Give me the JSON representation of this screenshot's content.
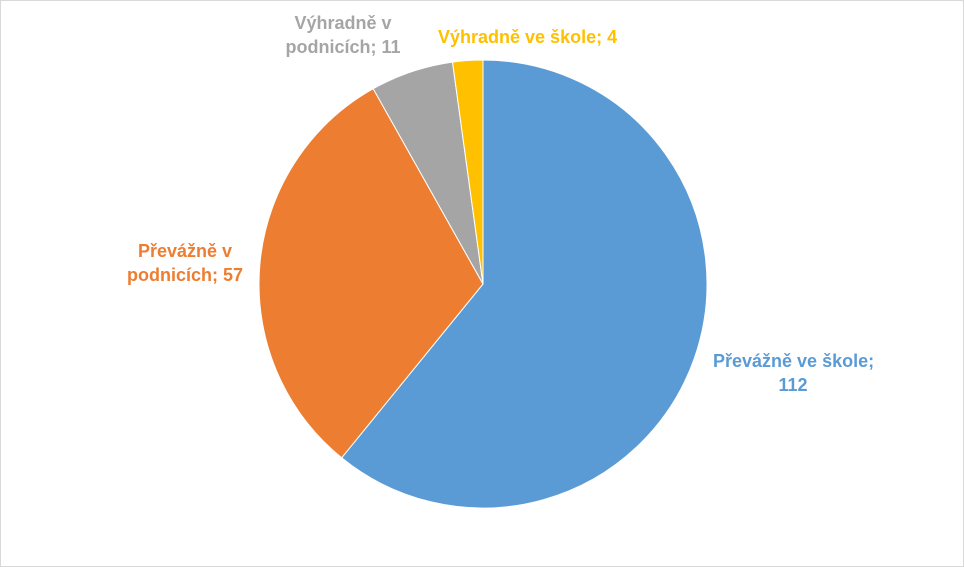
{
  "chart_data": {
    "type": "pie",
    "title": "",
    "categories": [
      "Převážně ve škole",
      "Převážně v podnicích",
      "Výhradně v podnicích",
      "Výhradně ve škole"
    ],
    "values": [
      112,
      57,
      11,
      4
    ],
    "colors": [
      "#5B9BD5",
      "#ED7D31",
      "#A5A5A5",
      "#FFC000"
    ],
    "start_angle_deg": 0,
    "direction": "clockwise",
    "labels": [
      {
        "line1": "Převážně ve škole;",
        "line2": "112"
      },
      {
        "line1": "Převážně v",
        "line2": "podnicích; 57"
      },
      {
        "line1": "Výhradně v",
        "line2": "podnicích; 11"
      },
      {
        "line1": "Výhradně ve škole; 4",
        "line2": ""
      }
    ],
    "legend": "none",
    "grid": false
  }
}
